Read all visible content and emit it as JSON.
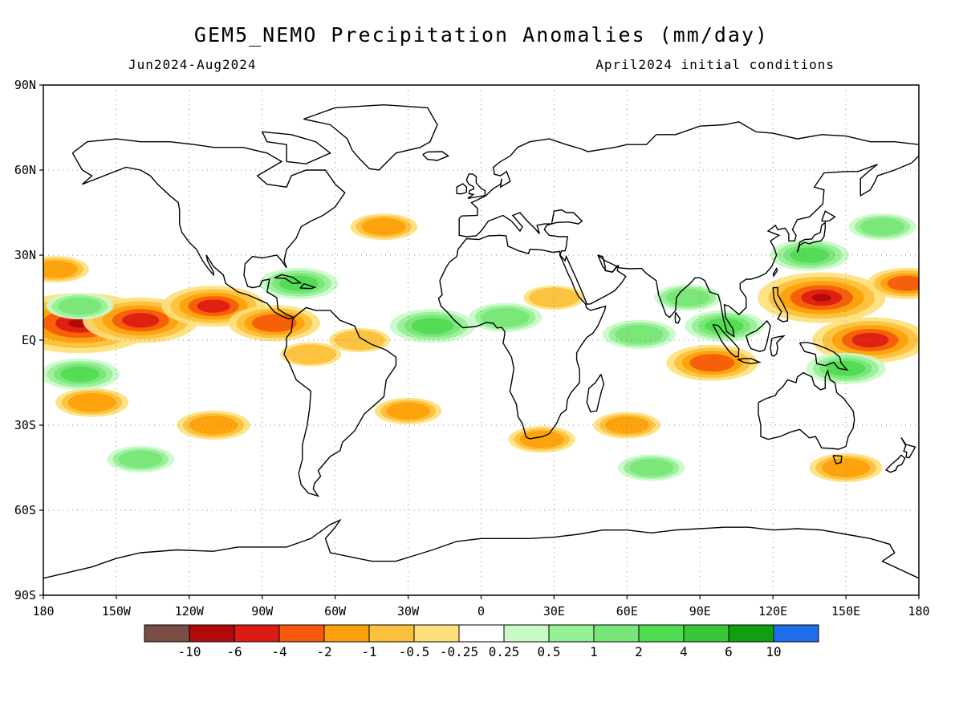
{
  "title": "GEM5_NEMO Precipitation Anomalies (mm/day)",
  "period": "Jun2024-Aug2024",
  "initial_conditions": "April2024 initial conditions",
  "lat_ticks": [
    "90N",
    "60N",
    "30N",
    "EQ",
    "30S",
    "60S",
    "90S"
  ],
  "lon_ticks": [
    "180",
    "150W",
    "120W",
    "90W",
    "60W",
    "30W",
    "0",
    "30E",
    "60E",
    "90E",
    "120E",
    "150E",
    "180"
  ],
  "colorbar": {
    "labels": [
      "-10",
      "-6",
      "-4",
      "-2",
      "-1",
      "-0.5",
      "-0.25",
      "0.25",
      "0.5",
      "1",
      "2",
      "4",
      "6",
      "10"
    ],
    "colors": [
      "#7a4e45",
      "#b00a0a",
      "#dc1c14",
      "#f65a0a",
      "#fca10a",
      "#fcc03c",
      "#fde07c",
      "#ffffff",
      "#c8fac8",
      "#96f095",
      "#78e678",
      "#50dc50",
      "#37c837",
      "#0fa00f",
      "#1e6eeb"
    ]
  },
  "chart_data": {
    "type": "heatmap",
    "variable": "Precipitation Anomalies",
    "units": "mm/day",
    "xlim": [
      -180,
      180
    ],
    "ylim": [
      -90,
      90
    ],
    "grid": true,
    "anomaly_features": [
      {
        "lon": -165,
        "lat": 6,
        "value": -8
      },
      {
        "lon": -140,
        "lat": 7,
        "value": -5
      },
      {
        "lon": -110,
        "lat": 12,
        "value": -4
      },
      {
        "lon": -85,
        "lat": 6,
        "value": -3
      },
      {
        "lon": -175,
        "lat": 25,
        "value": -1
      },
      {
        "lon": -160,
        "lat": -22,
        "value": -1.5
      },
      {
        "lon": -110,
        "lat": -30,
        "value": -1.5
      },
      {
        "lon": -30,
        "lat": -25,
        "value": -1
      },
      {
        "lon": -40,
        "lat": 40,
        "value": -1
      },
      {
        "lon": -50,
        "lat": 0,
        "value": -0.5
      },
      {
        "lon": -70,
        "lat": -5,
        "value": -0.5
      },
      {
        "lon": -20,
        "lat": 5,
        "value": 2.5
      },
      {
        "lon": 10,
        "lat": 8,
        "value": 1.5
      },
      {
        "lon": -75,
        "lat": 20,
        "value": 2
      },
      {
        "lon": -165,
        "lat": 12,
        "value": 1
      },
      {
        "lon": -165,
        "lat": -12,
        "value": 2
      },
      {
        "lon": 65,
        "lat": 2,
        "value": 1.5
      },
      {
        "lon": 85,
        "lat": 15,
        "value": 1
      },
      {
        "lon": 95,
        "lat": -8,
        "value": -3
      },
      {
        "lon": 140,
        "lat": 15,
        "value": -6
      },
      {
        "lon": 160,
        "lat": 0,
        "value": -5
      },
      {
        "lon": 175,
        "lat": 20,
        "value": -2
      },
      {
        "lon": 135,
        "lat": 30,
        "value": 2
      },
      {
        "lon": 165,
        "lat": 40,
        "value": 1
      },
      {
        "lon": 150,
        "lat": -10,
        "value": 2
      },
      {
        "lon": 60,
        "lat": -30,
        "value": -1
      },
      {
        "lon": 70,
        "lat": -45,
        "value": 1
      },
      {
        "lon": 25,
        "lat": -35,
        "value": -1
      },
      {
        "lon": 150,
        "lat": -45,
        "value": -1.5
      },
      {
        "lon": -140,
        "lat": -42,
        "value": 1
      },
      {
        "lon": 30,
        "lat": 15,
        "value": -0.5
      },
      {
        "lon": 100,
        "lat": 5,
        "value": 2
      }
    ]
  }
}
